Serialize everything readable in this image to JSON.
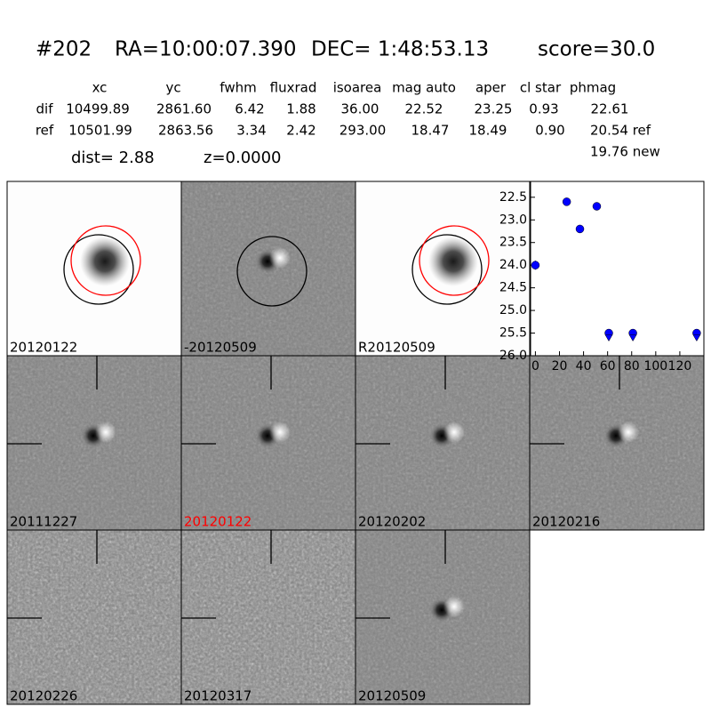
{
  "header": {
    "id": "#202",
    "ra": "RA=10:00:07.390",
    "dec": "DEC= 1:48:53.13",
    "score": "score=30.0"
  },
  "table": {
    "columns": [
      "xc",
      "yc",
      "fwhm",
      "fluxrad",
      "isoarea",
      "mag auto",
      "aper",
      "cl star",
      "phmag"
    ],
    "rows": [
      [
        "dif",
        "10499.89",
        "2861.60",
        "6.42",
        "1.88",
        "36.00",
        "22.52",
        "23.25",
        "0.93",
        "22.61"
      ],
      [
        "ref",
        "10501.99",
        "2863.56",
        "3.34",
        "2.42",
        "293.00",
        "18.47",
        "18.49",
        "0.90",
        "20.54 ref"
      ]
    ],
    "extra": "19.76 new"
  },
  "dist": "dist=  2.88",
  "z": "z=0.0000",
  "panels": [
    {
      "label": "20120122",
      "color": "#000000"
    },
    {
      "label": "-20120509",
      "color": "#000000"
    },
    {
      "label": "R20120509",
      "color": "#000000"
    },
    {
      "label": "20111227",
      "color": "#000000"
    },
    {
      "label": "20120122",
      "color": "#ff0000"
    },
    {
      "label": "20120202",
      "color": "#000000"
    },
    {
      "label": "20120216",
      "color": "#000000"
    },
    {
      "label": "20120226",
      "color": "#000000"
    },
    {
      "label": "20120317",
      "color": "#000000"
    },
    {
      "label": "20120509",
      "color": "#000000"
    }
  ],
  "chart_data": {
    "type": "scatter",
    "series": [
      {
        "color": "#0000ff",
        "x": [
          0,
          26,
          37,
          51
        ],
        "values": [
          24.0,
          22.6,
          23.2,
          22.7
        ],
        "errors": [
          0.1,
          0.03,
          0.05,
          0.04
        ]
      },
      {
        "color": "#0000ff",
        "x": [
          61,
          81,
          134
        ],
        "values": [
          25.5,
          25.5,
          25.5
        ],
        "marker": "limit"
      }
    ],
    "xlim": [
      -4,
      140
    ],
    "ylim": [
      26.0,
      22.15
    ],
    "xticks": [
      0,
      20,
      40,
      60,
      80,
      100,
      120
    ],
    "yticks": [
      {
        "value": 22.5,
        "label": "22.5"
      },
      {
        "value": 23.0,
        "label": "23.0"
      },
      {
        "value": 23.5,
        "label": "23.5"
      },
      {
        "value": 24.0,
        "label": "24.0"
      },
      {
        "value": 24.5,
        "label": "24.5"
      },
      {
        "value": 25.0,
        "label": "25.0"
      },
      {
        "value": 25.5,
        "label": "25.5"
      },
      {
        "value": 26.0,
        "label": "26.0"
      }
    ],
    "grid": false
  }
}
